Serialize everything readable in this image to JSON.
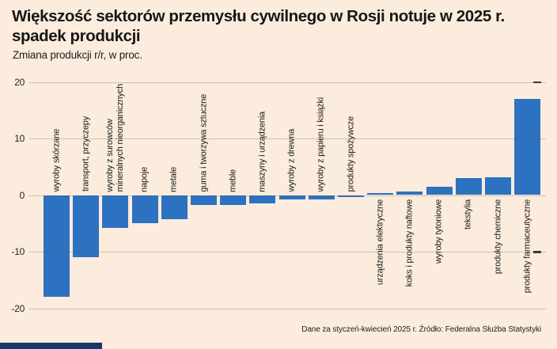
{
  "header": {
    "title_line1": "Większość sektorów przemysłu cywilnego w Rosji notuje w 2025 r.",
    "title_line2": "spadek produkcji",
    "subtitle": "Zmiana produkcji r/r, w proc."
  },
  "footer": {
    "source": "Dane za styczeń-kwiecień 2025 r. Źródło: Federalna Służba Statystyki"
  },
  "colors": {
    "background": "#fbecdd",
    "bar": "#2d71c1",
    "gridline_overlay": "rgba(95,82,66,0.28)",
    "text": "#1a1a1a",
    "brand_bar": "#16396b"
  },
  "chart_data": {
    "type": "bar",
    "title": "Większość sektorów przemysłu cywilnego w Rosji notuje w 2025 r. spadek produkcji",
    "subtitle": "Zmiana produkcji r/r, w proc.",
    "categories": [
      "wyroby skórzane",
      "transport, przyczepy",
      "wyroby z surowców\nmineralnych nieorganicznych",
      "napoje",
      "metale",
      "guma i tworzywa sztuczne",
      "meble",
      "maszyny i urządzenia",
      "wyroby z drewna",
      "wyroby z papieru i książki",
      "produkty spożywcze",
      "urządzenia elektryczne",
      "koks i produkty naftowe",
      "wyroby tytoniowe",
      "tekstylia",
      "produkty chemiczne",
      "produkty farmaceutyczne"
    ],
    "values": [
      -18,
      -11,
      -5.8,
      -5,
      -4.3,
      -1.8,
      -1.8,
      -1.5,
      -0.8,
      -0.8,
      -0.4,
      0.3,
      0.6,
      1.5,
      3,
      3.2,
      17
    ],
    "unit": "proc.",
    "ylim": [
      -20,
      20
    ],
    "yticks": [
      20,
      10,
      0,
      -10,
      -20
    ],
    "grid": "horizontal gridlines at each ytick",
    "legend": "none",
    "bar_color": "#2d71c1",
    "source_note": "Dane za styczeń-kwiecień 2025 r. Źródło: Federalna Służba Statystyki"
  }
}
